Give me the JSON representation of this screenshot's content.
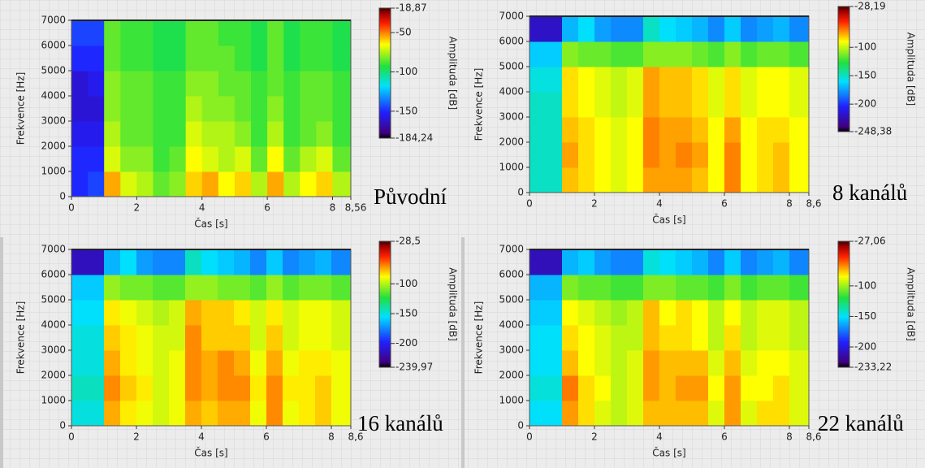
{
  "chart_data": [
    {
      "type": "heatmap",
      "caption": "Původní",
      "xlabel": "Čas [s]",
      "ylabel": "Frekvence [Hz]",
      "zlabel": "Amplituda [dB]",
      "x": [
        0.25,
        0.75,
        1.25,
        1.75,
        2.25,
        2.75,
        3.25,
        3.75,
        4.25,
        4.75,
        5.25,
        5.75,
        6.25,
        6.75,
        7.25,
        7.75,
        8.25
      ],
      "y": [
        500,
        1500,
        2500,
        3500,
        4500,
        5500,
        6500
      ],
      "values": [
        [
          -150,
          -145,
          -55,
          -70,
          -75,
          -85,
          -80,
          -60,
          -55,
          -65,
          -60,
          -75,
          -55,
          -75,
          -65,
          -60,
          -75
        ],
        [
          -150,
          -150,
          -70,
          -80,
          -80,
          -90,
          -85,
          -65,
          -70,
          -75,
          -70,
          -85,
          -65,
          -85,
          -75,
          -70,
          -85
        ],
        [
          -155,
          -155,
          -75,
          -85,
          -85,
          -90,
          -90,
          -70,
          -75,
          -75,
          -80,
          -90,
          -75,
          -90,
          -85,
          -80,
          -90
        ],
        [
          -160,
          -160,
          -80,
          -85,
          -85,
          -90,
          -90,
          -75,
          -80,
          -80,
          -85,
          -90,
          -80,
          -90,
          -85,
          -85,
          -90
        ],
        [
          -160,
          -155,
          -80,
          -85,
          -85,
          -90,
          -90,
          -80,
          -80,
          -85,
          -85,
          -90,
          -85,
          -90,
          -85,
          -85,
          -90
        ],
        [
          -150,
          -150,
          -85,
          -90,
          -90,
          -95,
          -95,
          -85,
          -85,
          -85,
          -90,
          -95,
          -85,
          -95,
          -90,
          -90,
          -95
        ],
        [
          -145,
          -145,
          -85,
          -90,
          -90,
          -95,
          -95,
          -85,
          -85,
          -90,
          -90,
          -95,
          -85,
          -95,
          -90,
          -90,
          -95
        ]
      ],
      "xlim": [
        0,
        8.56
      ],
      "ylim": [
        0,
        7000
      ],
      "xticks": [
        0,
        2,
        4,
        6,
        8,
        {
          "value": 8.56,
          "label": "8,56"
        }
      ],
      "yticks": [
        0,
        1000,
        2000,
        3000,
        4000,
        5000,
        6000,
        7000
      ],
      "zlim": [
        -184.24,
        -18.87
      ],
      "zticks": [
        {
          "value": -18.87,
          "label": "-18,87"
        },
        -50,
        -100,
        -150,
        {
          "value": -184.24,
          "label": "-184,24"
        }
      ],
      "colorscale": [
        [
          0,
          "#000000"
        ],
        [
          0.04,
          "#40007f"
        ],
        [
          0.2,
          "#2020ff"
        ],
        [
          0.4,
          "#00e0ff"
        ],
        [
          0.55,
          "#20e040"
        ],
        [
          0.72,
          "#ffff00"
        ],
        [
          0.88,
          "#ff2000"
        ],
        [
          0.96,
          "#a00000"
        ],
        [
          1,
          "#400000"
        ]
      ]
    },
    {
      "type": "heatmap",
      "caption": "8 kanálů",
      "xlabel": "Čas [s]",
      "ylabel": "Frekvence [Hz]",
      "zlabel": "Amplituda [dB]",
      "x": [
        0.25,
        0.75,
        1.25,
        1.75,
        2.25,
        2.75,
        3.25,
        3.75,
        4.25,
        4.75,
        5.25,
        5.75,
        6.25,
        6.75,
        7.25,
        7.75,
        8.25
      ],
      "y": [
        500,
        1500,
        2500,
        3500,
        4500,
        5500,
        6500
      ],
      "values": [
        [
          -150,
          -150,
          -80,
          -85,
          -90,
          -95,
          -90,
          -75,
          -75,
          -75,
          -80,
          -90,
          -70,
          -90,
          -85,
          -80,
          -90
        ],
        [
          -150,
          -150,
          -75,
          -85,
          -90,
          -95,
          -90,
          -70,
          -75,
          -70,
          -75,
          -90,
          -70,
          -90,
          -85,
          -80,
          -90
        ],
        [
          -150,
          -150,
          -80,
          -85,
          -90,
          -95,
          -90,
          -70,
          -75,
          -75,
          -80,
          -90,
          -75,
          -90,
          -85,
          -85,
          -90
        ],
        [
          -150,
          -150,
          -85,
          -90,
          -95,
          -100,
          -95,
          -75,
          -80,
          -80,
          -85,
          -95,
          -85,
          -95,
          -90,
          -90,
          -95
        ],
        [
          -155,
          -155,
          -85,
          -90,
          -95,
          -100,
          -95,
          -75,
          -80,
          -80,
          -85,
          -95,
          -85,
          -95,
          -90,
          -90,
          -95
        ],
        [
          -165,
          -165,
          -110,
          -115,
          -115,
          -120,
          -120,
          -110,
          -110,
          -110,
          -115,
          -120,
          -110,
          -120,
          -115,
          -115,
          -120
        ],
        [
          -220,
          -220,
          -170,
          -160,
          -175,
          -180,
          -180,
          -150,
          -160,
          -165,
          -170,
          -180,
          -165,
          -180,
          -175,
          -170,
          -180
        ]
      ],
      "xlim": [
        0,
        8.6
      ],
      "ylim": [
        0,
        7000
      ],
      "xticks": [
        0,
        2,
        4,
        6,
        8,
        {
          "value": 8.6,
          "label": "8,6"
        }
      ],
      "yticks": [
        0,
        1000,
        2000,
        3000,
        4000,
        5000,
        6000,
        7000
      ],
      "zlim": [
        -248.38,
        -28.19
      ],
      "zticks": [
        {
          "value": -28.19,
          "label": "-28,19"
        },
        -100,
        -150,
        -200,
        {
          "value": -248.38,
          "label": "-248,38"
        }
      ],
      "colorscale": [
        [
          0,
          "#000000"
        ],
        [
          0.04,
          "#40007f"
        ],
        [
          0.2,
          "#2020ff"
        ],
        [
          0.4,
          "#00e0ff"
        ],
        [
          0.55,
          "#20e040"
        ],
        [
          0.72,
          "#ffff00"
        ],
        [
          0.88,
          "#ff2000"
        ],
        [
          0.96,
          "#a00000"
        ],
        [
          1,
          "#400000"
        ]
      ]
    },
    {
      "type": "heatmap",
      "caption": "16 kanálů",
      "xlabel": "Čas [s]",
      "ylabel": "Frekvence [Hz]",
      "zlabel": "Amplituda [dB]",
      "x": [
        0.25,
        0.75,
        1.25,
        1.75,
        2.25,
        2.75,
        3.25,
        3.75,
        4.25,
        4.75,
        5.25,
        5.75,
        6.25,
        6.75,
        7.25,
        7.75,
        8.25
      ],
      "y": [
        500,
        1500,
        2500,
        3500,
        4500,
        5500,
        6500
      ],
      "values": [
        [
          -150,
          -150,
          -75,
          -85,
          -90,
          -95,
          -90,
          -75,
          -80,
          -75,
          -75,
          -90,
          -70,
          -90,
          -85,
          -80,
          -90
        ],
        [
          -145,
          -145,
          -70,
          -80,
          -85,
          -95,
          -90,
          -70,
          -75,
          -70,
          -70,
          -85,
          -70,
          -85,
          -85,
          -80,
          -90
        ],
        [
          -150,
          -150,
          -75,
          -85,
          -90,
          -95,
          -90,
          -70,
          -75,
          -70,
          -75,
          -90,
          -75,
          -90,
          -85,
          -85,
          -90
        ],
        [
          -150,
          -150,
          -80,
          -85,
          -90,
          -95,
          -95,
          -70,
          -80,
          -80,
          -80,
          -95,
          -80,
          -95,
          -90,
          -90,
          -95
        ],
        [
          -155,
          -155,
          -85,
          -90,
          -95,
          -100,
          -95,
          -75,
          -80,
          -80,
          -85,
          -95,
          -85,
          -95,
          -90,
          -90,
          -95
        ],
        [
          -160,
          -160,
          -105,
          -110,
          -110,
          -115,
          -115,
          -105,
          -105,
          -110,
          -110,
          -115,
          -105,
          -115,
          -110,
          -110,
          -115
        ],
        [
          -215,
          -215,
          -165,
          -155,
          -170,
          -175,
          -175,
          -145,
          -155,
          -160,
          -165,
          -175,
          -160,
          -175,
          -170,
          -165,
          -175
        ]
      ],
      "xlim": [
        0,
        8.6
      ],
      "ylim": [
        0,
        7000
      ],
      "xticks": [
        0,
        2,
        4,
        6,
        8,
        {
          "value": 8.6,
          "label": "8,6"
        }
      ],
      "yticks": [
        0,
        1000,
        2000,
        3000,
        4000,
        5000,
        6000,
        7000
      ],
      "zlim": [
        -239.97,
        -28.5
      ],
      "zticks": [
        {
          "value": -28.5,
          "label": "-28,5"
        },
        -100,
        -150,
        -200,
        {
          "value": -239.97,
          "label": "-239,97"
        }
      ],
      "colorscale": [
        [
          0,
          "#000000"
        ],
        [
          0.04,
          "#40007f"
        ],
        [
          0.2,
          "#2020ff"
        ],
        [
          0.4,
          "#00e0ff"
        ],
        [
          0.55,
          "#20e040"
        ],
        [
          0.72,
          "#ffff00"
        ],
        [
          0.88,
          "#ff2000"
        ],
        [
          0.96,
          "#a00000"
        ],
        [
          1,
          "#400000"
        ]
      ]
    },
    {
      "type": "heatmap",
      "caption": "22 kanálů",
      "xlabel": "Čas [s]",
      "ylabel": "Frekvence [Hz]",
      "zlabel": "Amplituda [dB]",
      "x": [
        0.25,
        0.75,
        1.25,
        1.75,
        2.25,
        2.75,
        3.25,
        3.75,
        4.25,
        4.75,
        5.25,
        5.75,
        6.25,
        6.75,
        7.25,
        7.75,
        8.25
      ],
      "y": [
        500,
        1500,
        2500,
        3500,
        4500,
        5500,
        6500
      ],
      "values": [
        [
          -150,
          -150,
          -70,
          -80,
          -90,
          -95,
          -90,
          -75,
          -75,
          -75,
          -75,
          -90,
          -70,
          -90,
          -80,
          -80,
          -90
        ],
        [
          -145,
          -145,
          -65,
          -80,
          -85,
          -95,
          -90,
          -70,
          -75,
          -70,
          -70,
          -85,
          -70,
          -85,
          -85,
          -80,
          -90
        ],
        [
          -150,
          -150,
          -75,
          -85,
          -90,
          -95,
          -90,
          -70,
          -75,
          -75,
          -75,
          -90,
          -75,
          -90,
          -85,
          -85,
          -90
        ],
        [
          -150,
          -150,
          -80,
          -85,
          -90,
          -95,
          -95,
          -75,
          -80,
          -80,
          -85,
          -95,
          -80,
          -95,
          -90,
          -90,
          -95
        ],
        [
          -155,
          -155,
          -85,
          -90,
          -95,
          -100,
          -95,
          -75,
          -85,
          -80,
          -85,
          -95,
          -85,
          -95,
          -90,
          -90,
          -95
        ],
        [
          -160,
          -160,
          -105,
          -110,
          -110,
          -115,
          -115,
          -105,
          -105,
          -110,
          -110,
          -115,
          -105,
          -115,
          -110,
          -110,
          -115
        ],
        [
          -210,
          -210,
          -160,
          -155,
          -165,
          -170,
          -170,
          -145,
          -150,
          -155,
          -160,
          -170,
          -155,
          -170,
          -165,
          -160,
          -170
        ]
      ],
      "xlim": [
        0,
        8.6
      ],
      "ylim": [
        0,
        7000
      ],
      "xticks": [
        0,
        2,
        4,
        6,
        8,
        {
          "value": 8.6,
          "label": "8,6"
        }
      ],
      "yticks": [
        0,
        1000,
        2000,
        3000,
        4000,
        5000,
        6000,
        7000
      ],
      "zlim": [
        -233.22,
        -27.06
      ],
      "zticks": [
        {
          "value": -27.06,
          "label": "-27,06"
        },
        -100,
        -150,
        -200,
        {
          "value": -233.22,
          "label": "-233,22"
        }
      ],
      "colorscale": [
        [
          0,
          "#000000"
        ],
        [
          0.04,
          "#40007f"
        ],
        [
          0.2,
          "#2020ff"
        ],
        [
          0.4,
          "#00e0ff"
        ],
        [
          0.55,
          "#20e040"
        ],
        [
          0.72,
          "#ffff00"
        ],
        [
          0.88,
          "#ff2000"
        ],
        [
          0.96,
          "#a00000"
        ],
        [
          1,
          "#400000"
        ]
      ]
    }
  ]
}
